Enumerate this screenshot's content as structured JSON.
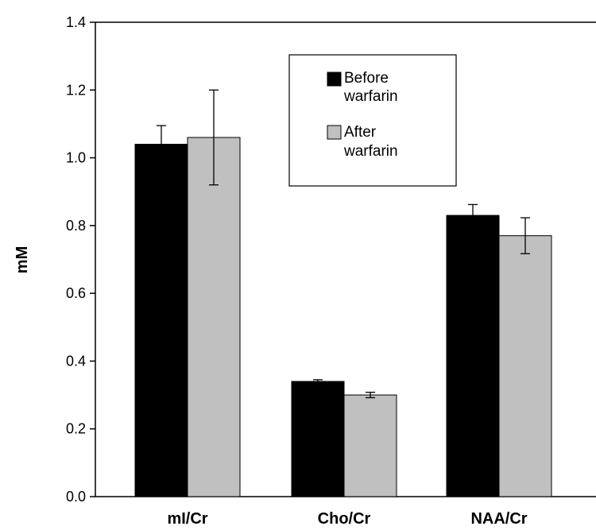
{
  "chart_data": {
    "type": "bar",
    "categories": [
      "mI/Cr",
      "Cho/Cr",
      "NAA/Cr"
    ],
    "series": [
      {
        "name": "Before warfarin",
        "values": [
          1.04,
          0.34,
          0.83
        ],
        "error": [
          0.055,
          0.005,
          0.032
        ],
        "color": "#000000"
      },
      {
        "name": "After warfarin",
        "values": [
          1.06,
          0.3,
          0.77
        ],
        "error": [
          0.14,
          0.008,
          0.053
        ],
        "color": "#c0c0c0"
      }
    ],
    "ylabel": "mM",
    "ylim": [
      0,
      1.4
    ],
    "yticks": [
      "0.0",
      "0.2",
      "0.4",
      "0.6",
      "0.8",
      "1.0",
      "1.2",
      "1.4"
    ],
    "legend": {
      "placement": "top-center",
      "entries": [
        {
          "lines": [
            "Before",
            "warfarin"
          ]
        },
        {
          "lines": [
            "After",
            "warfarin"
          ]
        }
      ]
    },
    "grid": false
  }
}
